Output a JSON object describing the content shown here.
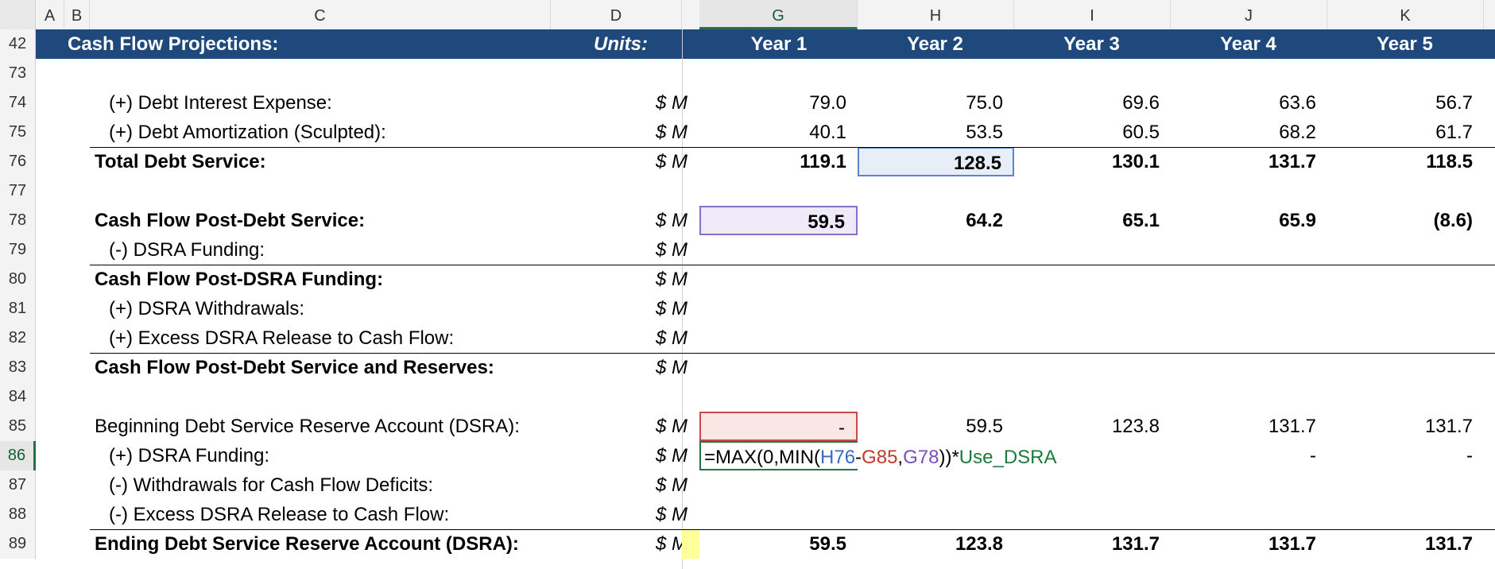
{
  "columns": [
    "A",
    "B",
    "C",
    "D",
    "G",
    "H",
    "I",
    "J",
    "K"
  ],
  "active_column": "G",
  "header_row": {
    "row": "42",
    "title": "Cash Flow Projections:",
    "units": "Units:",
    "years": [
      "Year 1",
      "Year 2",
      "Year 3",
      "Year 4",
      "Year 5"
    ]
  },
  "rows": [
    {
      "num": "73",
      "label": "",
      "unit": "",
      "values": [
        "",
        "",
        "",
        "",
        ""
      ]
    },
    {
      "num": "74",
      "label": "(+) Debt Interest Expense:",
      "unit": "$ M",
      "values": [
        "79.0",
        "75.0",
        "69.6",
        "63.6",
        "56.7"
      ]
    },
    {
      "num": "75",
      "label": "(+) Debt Amortization (Sculpted):",
      "unit": "$ M",
      "values": [
        "40.1",
        "53.5",
        "60.5",
        "68.2",
        "61.7"
      ]
    },
    {
      "num": "76",
      "label": "Total Debt Service:",
      "unit": "$ M",
      "values": [
        "119.1",
        "128.5",
        "130.1",
        "131.7",
        "118.5"
      ]
    },
    {
      "num": "77",
      "label": "",
      "unit": "",
      "values": [
        "",
        "",
        "",
        "",
        ""
      ]
    },
    {
      "num": "78",
      "label": "Cash Flow Post-Debt Service:",
      "unit": "$ M",
      "values": [
        "59.5",
        "64.2",
        "65.1",
        "65.9",
        "(8.6)"
      ]
    },
    {
      "num": "79",
      "label": "(-) DSRA Funding:",
      "unit": "$ M",
      "values": [
        "",
        "",
        "",
        "",
        ""
      ]
    },
    {
      "num": "80",
      "label": "Cash Flow Post-DSRA Funding:",
      "unit": "$ M",
      "values": [
        "",
        "",
        "",
        "",
        ""
      ]
    },
    {
      "num": "81",
      "label": "(+) DSRA Withdrawals:",
      "unit": "$ M",
      "values": [
        "",
        "",
        "",
        "",
        ""
      ]
    },
    {
      "num": "82",
      "label": "(+) Excess DSRA Release to Cash Flow:",
      "unit": "$ M",
      "values": [
        "",
        "",
        "",
        "",
        ""
      ]
    },
    {
      "num": "83",
      "label": "Cash Flow Post-Debt Service and Reserves:",
      "unit": "$ M",
      "values": [
        "",
        "",
        "",
        "",
        ""
      ]
    },
    {
      "num": "84",
      "label": "",
      "unit": "",
      "values": [
        "",
        "",
        "",
        "",
        ""
      ]
    },
    {
      "num": "85",
      "label": "Beginning Debt Service Reserve Account (DSRA):",
      "unit": "$ M",
      "values": [
        "-",
        "59.5",
        "123.8",
        "131.7",
        "131.7"
      ]
    },
    {
      "num": "86",
      "label": "(+) DSRA Funding:",
      "unit": "$ M",
      "values": [
        "",
        "",
        "",
        "-",
        "-"
      ]
    },
    {
      "num": "87",
      "label": "(-) Withdrawals for Cash Flow Deficits:",
      "unit": "$ M",
      "values": [
        "",
        "",
        "",
        "",
        ""
      ]
    },
    {
      "num": "88",
      "label": "(-) Excess DSRA Release to Cash Flow:",
      "unit": "$ M",
      "values": [
        "",
        "",
        "",
        "",
        ""
      ]
    },
    {
      "num": "89",
      "label": "Ending Debt Service Reserve Account (DSRA):",
      "unit": "$ M",
      "values": [
        "59.5",
        "123.8",
        "131.7",
        "131.7",
        "131.7"
      ]
    }
  ],
  "formula": {
    "p1": "=MAX(0,MIN(",
    "r1": "H76",
    "op": "-",
    "r2": "G85",
    "comma": ",",
    "r3": "G78",
    "p2": "))*",
    "name": "Use_DSRA"
  },
  "colors": {
    "header_bg": "#1f497d",
    "ref_blue": "#3a68c8",
    "ref_red": "#c0392b",
    "ref_purple": "#7b4fb8",
    "name_green": "#1e7a3c",
    "active_green": "#217346"
  }
}
